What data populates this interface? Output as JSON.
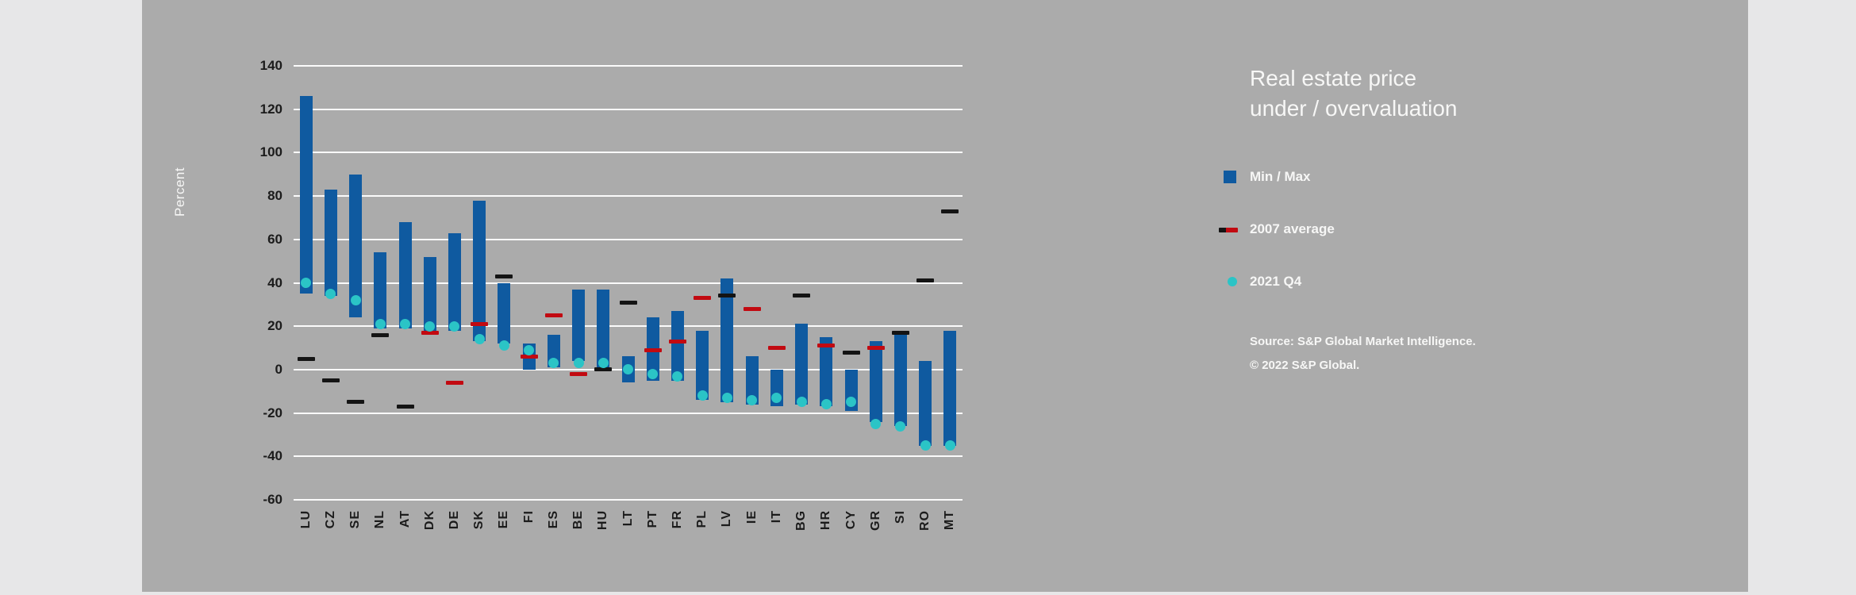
{
  "colors": {
    "page_bg": "#E7E7E8",
    "panel_bg": "#ABABAB",
    "grid": "#FBFBFB",
    "bar": "#0F5AA0",
    "dot": "#2BC4C6",
    "dash_red": "#C20A11",
    "dash_black": "#141414",
    "text_dark": "#1B1B1B",
    "text_light": "#F7F7F6"
  },
  "chart": {
    "title_lines": [
      "Real estate price",
      "under / overvaluation"
    ],
    "legend": [
      {
        "label": "Min / Max",
        "swatch": "square"
      },
      {
        "label": "2007 average",
        "swatch": "dash-duo"
      },
      {
        "label": "2021 Q4",
        "swatch": "dot"
      }
    ],
    "source_lines": [
      "Source: S&P Global Market Intelligence.",
      "© 2022 S&P Global."
    ]
  },
  "chart_data": {
    "type": "range-bar",
    "title": "Real estate price under / overvaluation",
    "ylabel": "Percent",
    "ylim": [
      -60,
      140
    ],
    "ytick_step": 20,
    "grid": true,
    "legend_position": "right",
    "categories": [
      "LU",
      "CZ",
      "SE",
      "NL",
      "AT",
      "DK",
      "DE",
      "SK",
      "EE",
      "FI",
      "ES",
      "BE",
      "HU",
      "LT",
      "PT",
      "FR",
      "PL",
      "LV",
      "IE",
      "IT",
      "BG",
      "HR",
      "CY",
      "GR",
      "SI",
      "RO",
      "MT"
    ],
    "series": [
      {
        "name": "Min / Max",
        "type": "range",
        "min": [
          35,
          34,
          24,
          19,
          19,
          17,
          18,
          13,
          12,
          0,
          1,
          4,
          1,
          -6,
          -5,
          -5,
          -14,
          -15,
          -16,
          -17,
          -16,
          -17,
          -19,
          -24,
          -26,
          -35,
          -35
        ],
        "max": [
          126,
          83,
          90,
          54,
          68,
          52,
          63,
          78,
          40,
          12,
          16,
          37,
          37,
          6,
          24,
          27,
          18,
          42,
          6,
          0,
          21,
          15,
          0,
          13,
          16,
          4,
          18
        ]
      },
      {
        "name": "2007 average",
        "type": "dash",
        "values": [
          5,
          -5,
          -15,
          16,
          -17,
          17,
          -6,
          21,
          43,
          6,
          25,
          -2,
          0,
          31,
          9,
          13,
          33,
          34,
          28,
          10,
          34,
          11,
          8,
          10,
          17,
          41,
          73
        ],
        "dash_colors": [
          "black",
          "black",
          "black",
          "black",
          "black",
          "red",
          "red",
          "red",
          "black",
          "red",
          "red",
          "red",
          "black",
          "black",
          "red",
          "red",
          "red",
          "black",
          "red",
          "red",
          "black",
          "red",
          "black",
          "red",
          "black",
          "black",
          "black"
        ]
      },
      {
        "name": "2021 Q4",
        "type": "dot",
        "values": [
          40,
          35,
          32,
          21,
          21,
          20,
          20,
          14,
          11,
          9,
          3,
          3,
          3,
          0,
          -2,
          -3,
          -12,
          -13,
          -14,
          -13,
          -15,
          -16,
          -15,
          -25,
          -26,
          -35,
          -35
        ]
      }
    ]
  }
}
